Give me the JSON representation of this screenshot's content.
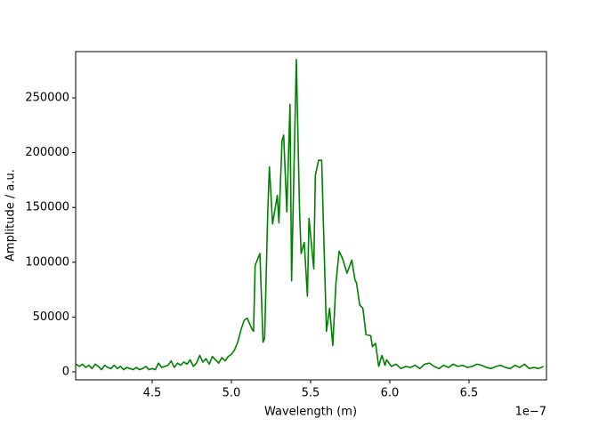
{
  "chart_data": {
    "type": "line",
    "x_label": "Wavelength (m)",
    "y_label": "Amplitude / a.u.",
    "x_offset_label": "1e−7",
    "xlim": [
      4.017,
      6.989
    ],
    "ylim": [
      -7300,
      292200
    ],
    "xticks": [
      4.5,
      {
        "value": 5,
        "label": "5.0"
      },
      5.5,
      {
        "value": 6,
        "label": "6.0"
      },
      6.5
    ],
    "yticks": [
      0,
      50000,
      100000,
      150000,
      200000,
      250000
    ],
    "grid": false,
    "series": [
      {
        "color": "#008000",
        "x": [
          4.02,
          4.04,
          4.06,
          4.08,
          4.1,
          4.12,
          4.14,
          4.16,
          4.18,
          4.2,
          4.22,
          4.24,
          4.26,
          4.28,
          4.3,
          4.32,
          4.34,
          4.36,
          4.38,
          4.4,
          4.42,
          4.44,
          4.46,
          4.48,
          4.5,
          4.52,
          4.54,
          4.56,
          4.58,
          4.6,
          4.62,
          4.64,
          4.66,
          4.68,
          4.7,
          4.72,
          4.74,
          4.76,
          4.78,
          4.8,
          4.82,
          4.84,
          4.86,
          4.88,
          4.9,
          4.92,
          4.94,
          4.96,
          4.98,
          5.0,
          5.02,
          5.04,
          5.06,
          5.08,
          5.1,
          5.13,
          5.14,
          5.15,
          5.18,
          5.2,
          5.21,
          5.23,
          5.24,
          5.26,
          5.29,
          5.3,
          5.32,
          5.33,
          5.35,
          5.37,
          5.38,
          5.41,
          5.43,
          5.44,
          5.46,
          5.48,
          5.49,
          5.52,
          5.53,
          5.55,
          5.57,
          5.58,
          5.6,
          5.62,
          5.64,
          5.66,
          5.68,
          5.7,
          5.73,
          5.76,
          5.78,
          5.79,
          5.81,
          5.83,
          5.85,
          5.88,
          5.89,
          5.91,
          5.93,
          5.95,
          5.97,
          5.98,
          6.01,
          6.04,
          6.07,
          6.1,
          6.13,
          6.16,
          6.19,
          6.22,
          6.25,
          6.28,
          6.31,
          6.34,
          6.37,
          6.4,
          6.43,
          6.46,
          6.49,
          6.52,
          6.55,
          6.58,
          6.61,
          6.64,
          6.67,
          6.7,
          6.73,
          6.76,
          6.79,
          6.82,
          6.85,
          6.88,
          6.91,
          6.94,
          6.97
        ],
        "values": [
          7000,
          5000,
          7000,
          4000,
          6000,
          3000,
          7000,
          5000,
          2000,
          6000,
          4000,
          3000,
          6000,
          3000,
          5000,
          2000,
          4000,
          3000,
          2000,
          4000,
          2000,
          3000,
          5000,
          2000,
          3000,
          2000,
          8000,
          4000,
          5000,
          6000,
          10000,
          4000,
          8000,
          6000,
          9000,
          7000,
          11000,
          5000,
          8000,
          15000,
          9000,
          12000,
          7000,
          14000,
          11000,
          8000,
          13000,
          10000,
          14000,
          16000,
          20000,
          27000,
          38000,
          47000,
          49000,
          39000,
          37000,
          97000,
          108000,
          27000,
          31000,
          148000,
          187000,
          135000,
          161000,
          136000,
          211000,
          216000,
          146000,
          244000,
          83000,
          285000,
          149000,
          108000,
          118000,
          69000,
          140000,
          94000,
          179000,
          193000,
          193000,
          140000,
          37000,
          58000,
          24000,
          81000,
          110000,
          104000,
          90000,
          102000,
          84000,
          81000,
          61000,
          58000,
          34000,
          33000,
          23000,
          26000,
          5000,
          15000,
          6000,
          11000,
          5000,
          7000,
          3000,
          5000,
          4000,
          6000,
          3000,
          7000,
          8000,
          5000,
          3000,
          6000,
          4000,
          7000,
          5000,
          6000,
          4000,
          5000,
          7000,
          6000,
          4000,
          3000,
          5000,
          6000,
          4000,
          3000,
          6000,
          4000,
          7000,
          3000,
          4000,
          3000,
          5000
        ]
      }
    ]
  }
}
